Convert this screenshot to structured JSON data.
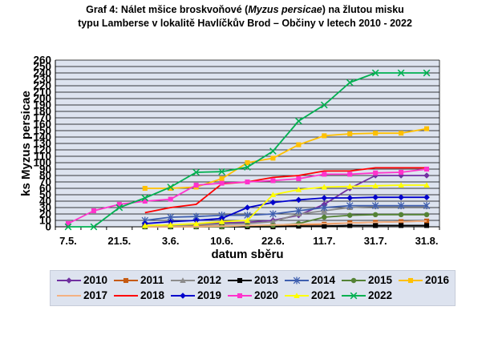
{
  "chart_data": {
    "type": "line",
    "title_prefix": "Graf 4: Nálet mšice broskvoňové (",
    "title_italic": "Myzus persicae",
    "title_suffix": ") na žlutou misku",
    "title_line2": "typu Lamberse v lokalitě Havlíčkův Brod – Občiny v letech 2010 - 2022",
    "xlabel": "datum sběru",
    "ylabel": "ks Myzus persicae",
    "ylim": [
      0,
      260
    ],
    "yticks": [
      0,
      10,
      20,
      30,
      40,
      50,
      60,
      70,
      80,
      90,
      100,
      110,
      120,
      130,
      140,
      150,
      160,
      170,
      180,
      190,
      200,
      210,
      220,
      230,
      240,
      250,
      260
    ],
    "x_ticklabels": [
      "7.5.",
      "21.5.",
      "3.6.",
      "10.6.",
      "22.6.",
      "11.7.",
      "31.7.",
      "31.8."
    ],
    "x_positions": 15,
    "grid": true,
    "legend_placement": "bottom",
    "series": [
      {
        "name": "2010",
        "color": "#7030a0",
        "marker": "diamond",
        "values": [
          null,
          null,
          null,
          2,
          3,
          4,
          6,
          7,
          10,
          18,
          35,
          60,
          80,
          80,
          80
        ]
      },
      {
        "name": "2011",
        "color": "#c55a11",
        "marker": "square",
        "values": [
          null,
          null,
          null,
          0,
          0,
          1,
          1,
          1,
          2,
          3,
          4,
          6,
          7,
          8,
          9
        ]
      },
      {
        "name": "2012",
        "color": "#8c8c8c",
        "marker": "triangle",
        "values": [
          null,
          null,
          null,
          1,
          2,
          3,
          4,
          5,
          8,
          20,
          25,
          30,
          32,
          32,
          32
        ]
      },
      {
        "name": "2013",
        "color": "#000000",
        "marker": "square",
        "values": [
          null,
          null,
          null,
          0,
          0,
          0,
          0,
          0,
          0,
          1,
          1,
          2,
          2,
          2,
          2
        ]
      },
      {
        "name": "2014",
        "color": "#3f5faf",
        "marker": "star",
        "values": [
          null,
          null,
          null,
          10,
          15,
          16,
          18,
          18,
          20,
          25,
          30,
          33,
          33,
          33,
          33
        ]
      },
      {
        "name": "2015",
        "color": "#548235",
        "marker": "circle",
        "values": [
          null,
          null,
          null,
          0,
          0,
          0,
          0,
          2,
          2,
          5,
          15,
          18,
          19,
          19,
          19
        ]
      },
      {
        "name": "2016",
        "color": "#ffc000",
        "marker": "square",
        "values": [
          null,
          null,
          null,
          60,
          60,
          62,
          75,
          100,
          107,
          128,
          142,
          145,
          146,
          146,
          153
        ]
      },
      {
        "name": "2017",
        "color": "#f4b183",
        "marker": "none",
        "values": [
          null,
          null,
          null,
          0,
          0,
          0,
          1,
          2,
          3,
          4,
          5,
          6,
          7,
          8,
          9
        ]
      },
      {
        "name": "2018",
        "color": "#ff0000",
        "marker": "none",
        "values": [
          null,
          null,
          null,
          22,
          30,
          35,
          67,
          70,
          77,
          80,
          87,
          87,
          92,
          92,
          92
        ]
      },
      {
        "name": "2019",
        "color": "#0000cc",
        "marker": "diamond",
        "values": [
          null,
          null,
          null,
          5,
          8,
          10,
          13,
          30,
          38,
          42,
          45,
          45,
          46,
          46,
          46
        ]
      },
      {
        "name": "2020",
        "color": "#ff33cc",
        "marker": "square",
        "values": [
          5,
          25,
          35,
          40,
          43,
          65,
          68,
          70,
          72,
          75,
          82,
          82,
          84,
          85,
          90
        ]
      },
      {
        "name": "2021",
        "color": "#ffff00",
        "marker": "triangle",
        "values": [
          null,
          null,
          null,
          2,
          3,
          5,
          8,
          10,
          50,
          58,
          62,
          63,
          64,
          65,
          65
        ]
      },
      {
        "name": "2022",
        "color": "#00b050",
        "marker": "x",
        "values": [
          0,
          0,
          30,
          45,
          62,
          85,
          86,
          93,
          118,
          165,
          190,
          225,
          240,
          240,
          240
        ]
      }
    ]
  }
}
